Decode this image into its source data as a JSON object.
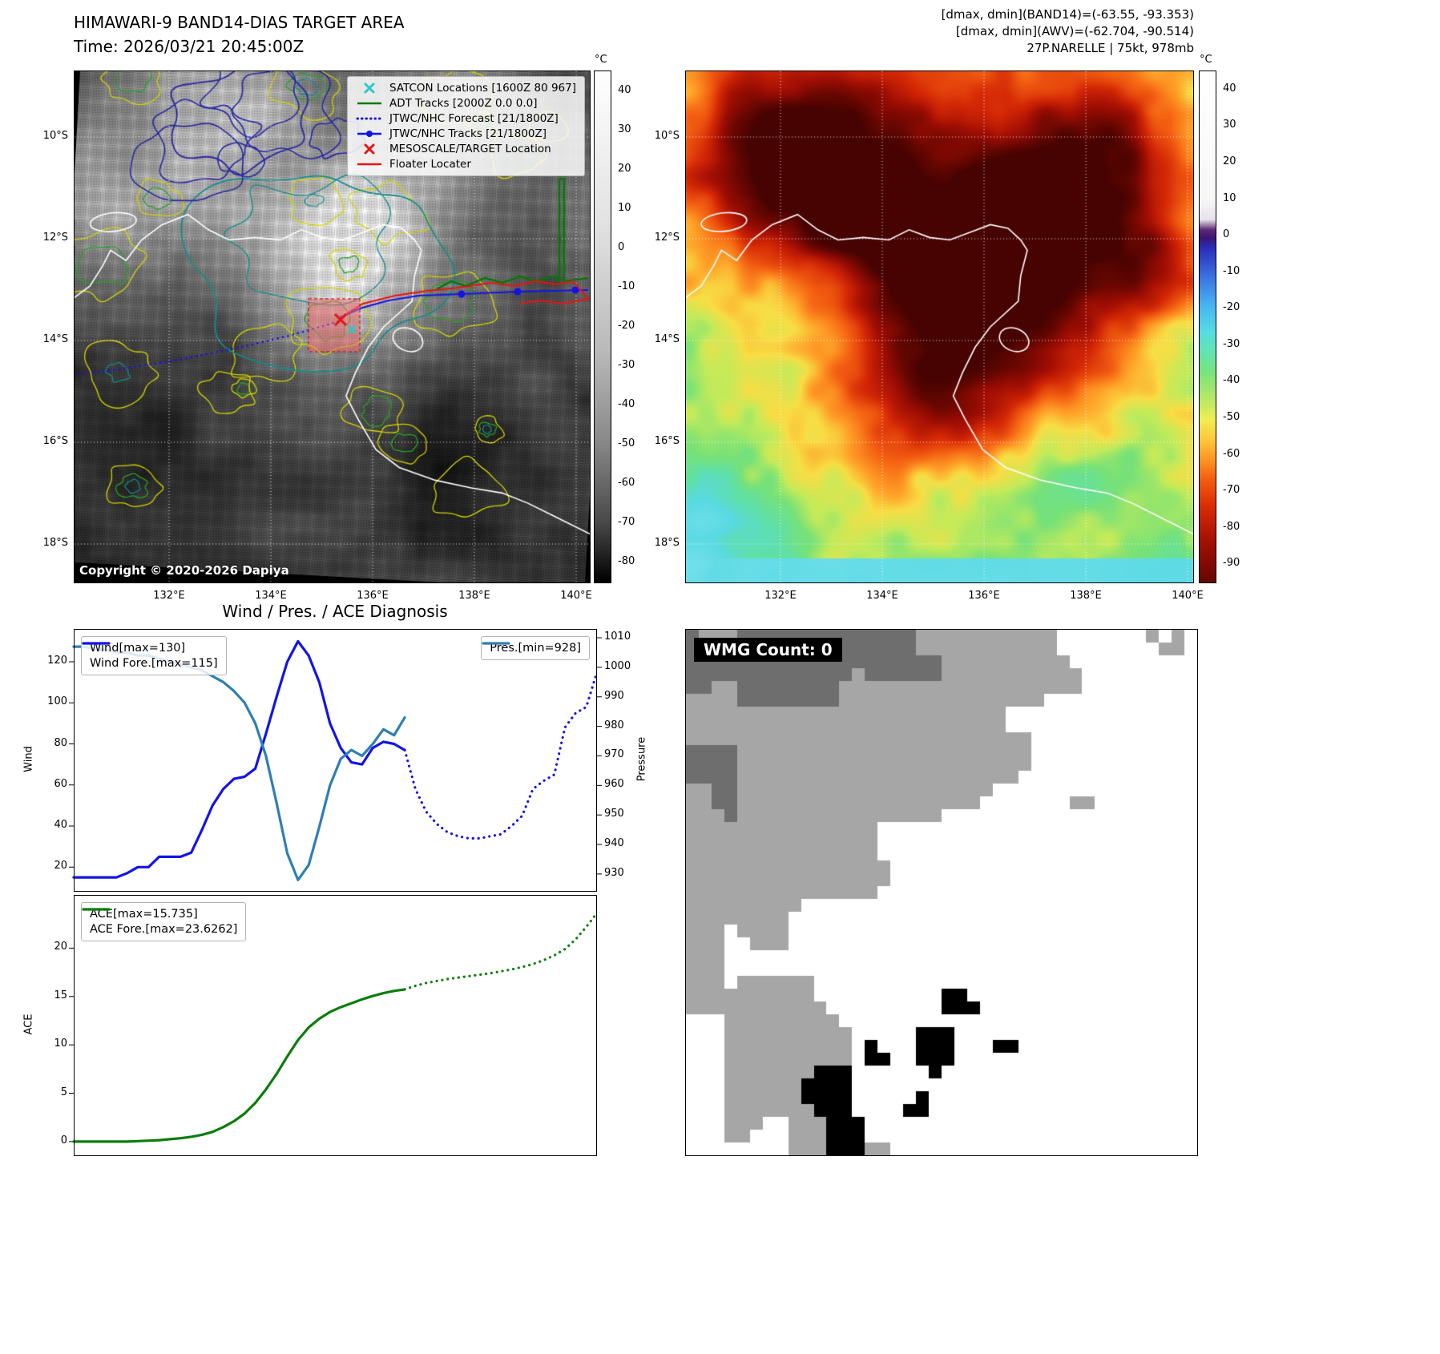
{
  "band14_panel": {
    "title": "HIMAWARI-9 BAND14-DIAS TARGET AREA",
    "time_line": "Time: 2026/03/21 20:45:00Z",
    "copyright": "Copyright © 2020-2026 Dapiya",
    "legend": [
      {
        "label": "SATCON Locations [1600Z 80 967]",
        "marker": "x",
        "color": "#2ac8c8"
      },
      {
        "label": "ADT Tracks [2000Z 0.0 0.0]",
        "marker": "line",
        "color": "#007a00"
      },
      {
        "label": "JTWC/NHC Forecast [21/1800Z]",
        "marker": "dotted",
        "color": "#1313e8"
      },
      {
        "label": "JTWC/NHC Tracks [21/1800Z]",
        "marker": "line-marker",
        "color": "#1313e8"
      },
      {
        "label": "MESOSCALE/TARGET Location",
        "marker": "x",
        "color": "#e81313"
      },
      {
        "label": "Floater Locater",
        "marker": "line",
        "color": "#e81313"
      }
    ],
    "colorbar": {
      "unit": "°C",
      "ticks": [
        40,
        30,
        20,
        10,
        0,
        -10,
        -20,
        -30,
        -40,
        -50,
        -60,
        -70,
        -80
      ]
    },
    "lat_ticks": [
      "10°S",
      "12°S",
      "14°S",
      "16°S",
      "18°S"
    ],
    "lon_ticks": [
      "132°E",
      "134°E",
      "136°E",
      "138°E",
      "140°E"
    ]
  },
  "awv_panel": {
    "header_lines": [
      "[dmax, dmin](BAND14)=(-63.55, -93.353)",
      "[dmax, dmin](AWV)=(-62.704, -90.514)",
      "27P.NARELLE | 75kt, 978mb"
    ],
    "colorbar": {
      "unit": "°C",
      "ticks": [
        40,
        30,
        20,
        10,
        0,
        -10,
        -20,
        -30,
        -40,
        -50,
        -60,
        -70,
        -80,
        -90
      ]
    },
    "lat_ticks": [
      "10°S",
      "12°S",
      "14°S",
      "16°S",
      "18°S"
    ],
    "lon_ticks": [
      "132°E",
      "134°E",
      "136°E",
      "138°E",
      "140°E"
    ]
  },
  "wmg_panel": {
    "label": "WMG Count: 0"
  },
  "chart_data": [
    {
      "type": "line",
      "title": "Wind / Pres. / ACE Diagnosis",
      "xlim": [
        0,
        49
      ],
      "ylabel_left": "Wind",
      "ylabel_right": "Pressure",
      "ylim_left": [
        8,
        136
      ],
      "ylim_right": [
        924,
        1013
      ],
      "yticks_left": [
        20,
        40,
        60,
        80,
        100,
        120
      ],
      "yticks_right": [
        930,
        940,
        950,
        960,
        970,
        980,
        990,
        1000,
        1010
      ],
      "grid": false,
      "legend_position": "upper left and upper right",
      "series": [
        {
          "name": "Wind[max=130]",
          "legend_pos": "left",
          "axis": "left",
          "style": "solid",
          "color": "#1313e8",
          "x": [
            0,
            1,
            2,
            3,
            4,
            5,
            6,
            7,
            8,
            9,
            10,
            11,
            12,
            13,
            14,
            15,
            16,
            17,
            18,
            19,
            20,
            21,
            22,
            23,
            24,
            25,
            26,
            27,
            28,
            29,
            30,
            31
          ],
          "values": [
            15,
            15,
            15,
            15,
            15,
            17,
            20,
            20,
            25,
            25,
            25,
            27,
            38,
            50,
            58,
            63,
            64,
            68,
            85,
            103,
            120,
            130,
            123,
            110,
            90,
            78,
            71,
            70,
            78,
            81,
            80,
            77
          ]
        },
        {
          "name": "Wind Fore.[max=115]",
          "legend_pos": "left",
          "axis": "left",
          "style": "dotted",
          "color": "#1313e8",
          "x": [
            31,
            32,
            33,
            34,
            35,
            36,
            37,
            38,
            39,
            40,
            41,
            42,
            43,
            44,
            45,
            46,
            47,
            48,
            49
          ],
          "values": [
            77,
            58,
            47,
            41,
            37,
            35,
            34,
            34,
            35,
            36,
            40,
            45,
            58,
            62,
            65,
            88,
            95,
            98,
            115
          ]
        },
        {
          "name": "Pres.[min=928]",
          "legend_pos": "right",
          "axis": "right",
          "style": "solid",
          "color": "#2e7eb5",
          "x": [
            0,
            1,
            2,
            3,
            4,
            5,
            6,
            7,
            8,
            9,
            10,
            11,
            12,
            13,
            14,
            15,
            16,
            17,
            18,
            19,
            20,
            21,
            22,
            23,
            24,
            25,
            26,
            27,
            28,
            29,
            30,
            31
          ],
          "values": [
            1007,
            1007,
            1006,
            1006,
            1005,
            1005,
            1004,
            1004,
            1003,
            1002,
            1001,
            1000,
            999,
            997,
            995,
            992,
            988,
            981,
            970,
            954,
            937,
            928,
            933,
            946,
            960,
            969,
            972,
            970,
            974,
            979,
            977,
            983
          ]
        }
      ]
    },
    {
      "type": "line",
      "title": "",
      "xlim": [
        0,
        49
      ],
      "ylabel_left": "ACE",
      "ylim_left": [
        -1.5,
        25.5
      ],
      "yticks_left": [
        0,
        5,
        10,
        15,
        20
      ],
      "grid": false,
      "legend_position": "upper left",
      "series": [
        {
          "name": "ACE[max=15.735]",
          "legend_pos": "left",
          "axis": "left",
          "style": "solid",
          "color": "#0a7d0a",
          "x": [
            0,
            1,
            2,
            3,
            4,
            5,
            6,
            7,
            8,
            9,
            10,
            11,
            12,
            13,
            14,
            15,
            16,
            17,
            18,
            19,
            20,
            21,
            22,
            23,
            24,
            25,
            26,
            27,
            28,
            29,
            30,
            31
          ],
          "values": [
            0,
            0,
            0,
            0,
            0,
            0,
            0.05,
            0.1,
            0.15,
            0.25,
            0.35,
            0.5,
            0.7,
            1.0,
            1.5,
            2.1,
            2.9,
            4.0,
            5.4,
            7.0,
            8.8,
            10.5,
            11.8,
            12.7,
            13.4,
            13.9,
            14.3,
            14.7,
            15.05,
            15.35,
            15.58,
            15.735
          ]
        },
        {
          "name": "ACE Fore.[max=23.6262]",
          "legend_pos": "left",
          "axis": "left",
          "style": "dotted",
          "color": "#0a7d0a",
          "x": [
            31,
            32,
            33,
            34,
            35,
            36,
            37,
            38,
            39,
            40,
            41,
            42,
            43,
            44,
            45,
            46,
            47,
            48,
            49
          ],
          "values": [
            15.735,
            16.1,
            16.4,
            16.6,
            16.8,
            16.95,
            17.1,
            17.25,
            17.4,
            17.6,
            17.8,
            18.05,
            18.35,
            18.75,
            19.25,
            19.9,
            20.9,
            22.2,
            23.6262
          ]
        }
      ]
    }
  ]
}
